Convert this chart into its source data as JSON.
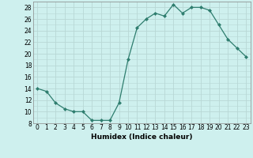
{
  "x": [
    0,
    1,
    2,
    3,
    4,
    5,
    6,
    7,
    8,
    9,
    10,
    11,
    12,
    13,
    14,
    15,
    16,
    17,
    18,
    19,
    20,
    21,
    22,
    23
  ],
  "y": [
    14,
    13.5,
    11.5,
    10.5,
    10,
    10,
    8.5,
    8.5,
    8.5,
    11.5,
    19,
    24.5,
    26,
    27,
    26.5,
    28.5,
    27,
    28,
    28,
    27.5,
    25,
    22.5,
    21,
    19.5
  ],
  "line_color": "#2e7d6e",
  "marker": "D",
  "marker_size": 2.0,
  "bg_color": "#cef0ee",
  "grid_color": "#b8d8d5",
  "xlabel": "Humidex (Indice chaleur)",
  "ylim": [
    8,
    29
  ],
  "xlim": [
    -0.5,
    23.5
  ],
  "yticks": [
    8,
    10,
    12,
    14,
    16,
    18,
    20,
    22,
    24,
    26,
    28
  ],
  "xticks": [
    0,
    1,
    2,
    3,
    4,
    5,
    6,
    7,
    8,
    9,
    10,
    11,
    12,
    13,
    14,
    15,
    16,
    17,
    18,
    19,
    20,
    21,
    22,
    23
  ],
  "xlabel_fontsize": 6.5,
  "tick_fontsize": 5.5
}
